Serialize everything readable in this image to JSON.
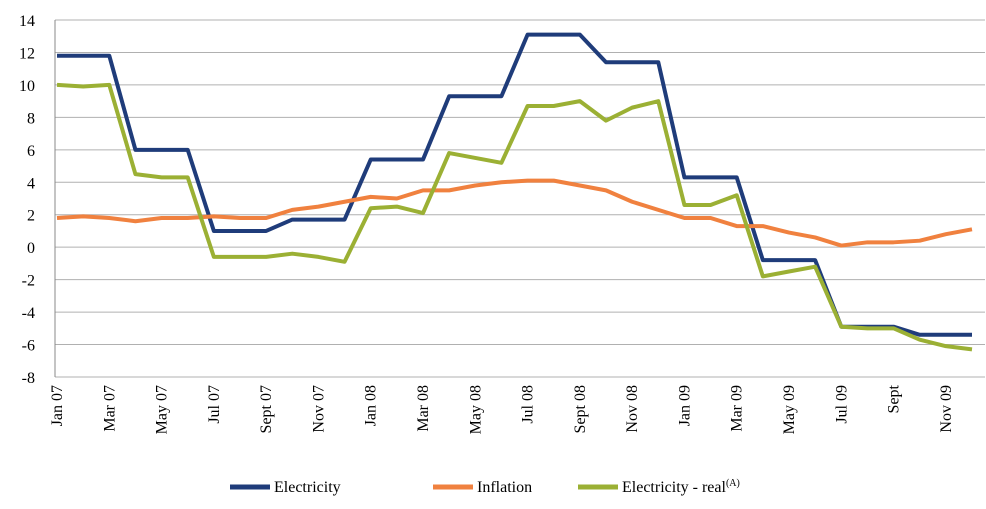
{
  "chart_data": {
    "type": "line",
    "categories": [
      "Jan 07",
      null,
      "Mar 07",
      null,
      "May 07",
      null,
      "Jul 07",
      null,
      "Sept 07",
      null,
      "Nov 07",
      null,
      "Jan 08",
      null,
      "Mar 08",
      null,
      "May 08",
      null,
      "Jul 08",
      null,
      "Sept 08",
      null,
      "Nov 08",
      null,
      "Jan 09",
      null,
      "Mar 09",
      null,
      "May 09",
      null,
      "Jul 09",
      null,
      "Sept",
      null,
      "Nov 09",
      null
    ],
    "series": [
      {
        "name": "Electricity",
        "color": "#1f3c7a",
        "values": [
          11.8,
          11.8,
          11.8,
          6,
          6,
          6,
          1,
          1,
          1,
          1.7,
          1.7,
          1.7,
          5.4,
          5.4,
          5.4,
          9.3,
          9.3,
          9.3,
          13.1,
          13.1,
          13.1,
          11.4,
          11.4,
          11.4,
          4.3,
          4.3,
          4.3,
          -0.8,
          -0.8,
          -0.8,
          -4.9,
          -4.9,
          -4.9,
          -5.4,
          -5.4,
          -5.4
        ]
      },
      {
        "name": "Inflation",
        "color": "#f0813f",
        "values": [
          1.8,
          1.9,
          1.8,
          1.6,
          1.8,
          1.8,
          1.9,
          1.8,
          1.8,
          2.3,
          2.5,
          2.8,
          3.1,
          3.0,
          3.5,
          3.5,
          3.8,
          4.0,
          4.1,
          4.1,
          3.8,
          3.5,
          2.8,
          2.3,
          1.8,
          1.8,
          1.3,
          1.3,
          0.9,
          0.6,
          0.1,
          0.3,
          0.3,
          0.4,
          0.8,
          1.1
        ]
      },
      {
        "name": "Electricity - real",
        "name_note": "(A)",
        "color": "#9bb034",
        "values": [
          10,
          9.9,
          10,
          4.5,
          4.3,
          4.3,
          -0.6,
          -0.6,
          -0.6,
          -0.4,
          -0.6,
          -0.9,
          2.4,
          2.5,
          2.1,
          5.8,
          5.5,
          5.2,
          8.7,
          8.7,
          9.0,
          7.8,
          8.6,
          9.0,
          2.6,
          2.6,
          3.2,
          -1.8,
          -1.5,
          -1.2,
          -4.9,
          -5.0,
          -5.0,
          -5.7,
          -6.1,
          -6.3
        ]
      }
    ],
    "ylim": [
      -8,
      14
    ],
    "yticks": [
      -8,
      -6,
      -4,
      -2,
      0,
      2,
      4,
      6,
      8,
      10,
      12,
      14
    ],
    "grid": true,
    "legend": "bottom"
  }
}
